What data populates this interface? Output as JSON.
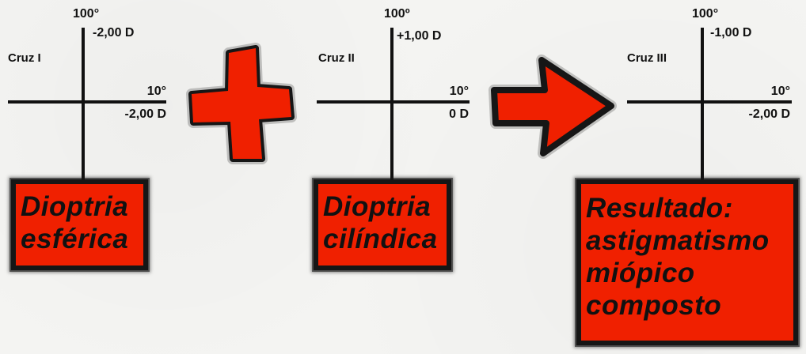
{
  "colors": {
    "accent_red": "#f02000",
    "ink": "#111111",
    "background": "#f4f4f2"
  },
  "crosses": [
    {
      "name": "Cruz I",
      "top_angle": "100°",
      "top_value": "-2,00 D",
      "right_angle": "10°",
      "right_value": "-2,00 D",
      "box_lines": [
        "Dioptria",
        "esférica"
      ]
    },
    {
      "name": "Cruz II",
      "top_angle": "100º",
      "top_value": "+1,00 D",
      "right_angle": "10°",
      "right_value": "0 D",
      "box_lines": [
        "Dioptria",
        "cilíndica"
      ]
    },
    {
      "name": "Cruz III",
      "top_angle": "100°",
      "top_value": "-1,00 D",
      "right_angle": "10°",
      "right_value": "-2,00 D",
      "box_lines": [
        "Resultado:",
        "astigmatismo",
        "miópico",
        "composto"
      ]
    }
  ],
  "operators": {
    "plus": "plus-icon",
    "arrow": "arrow-right-icon"
  }
}
